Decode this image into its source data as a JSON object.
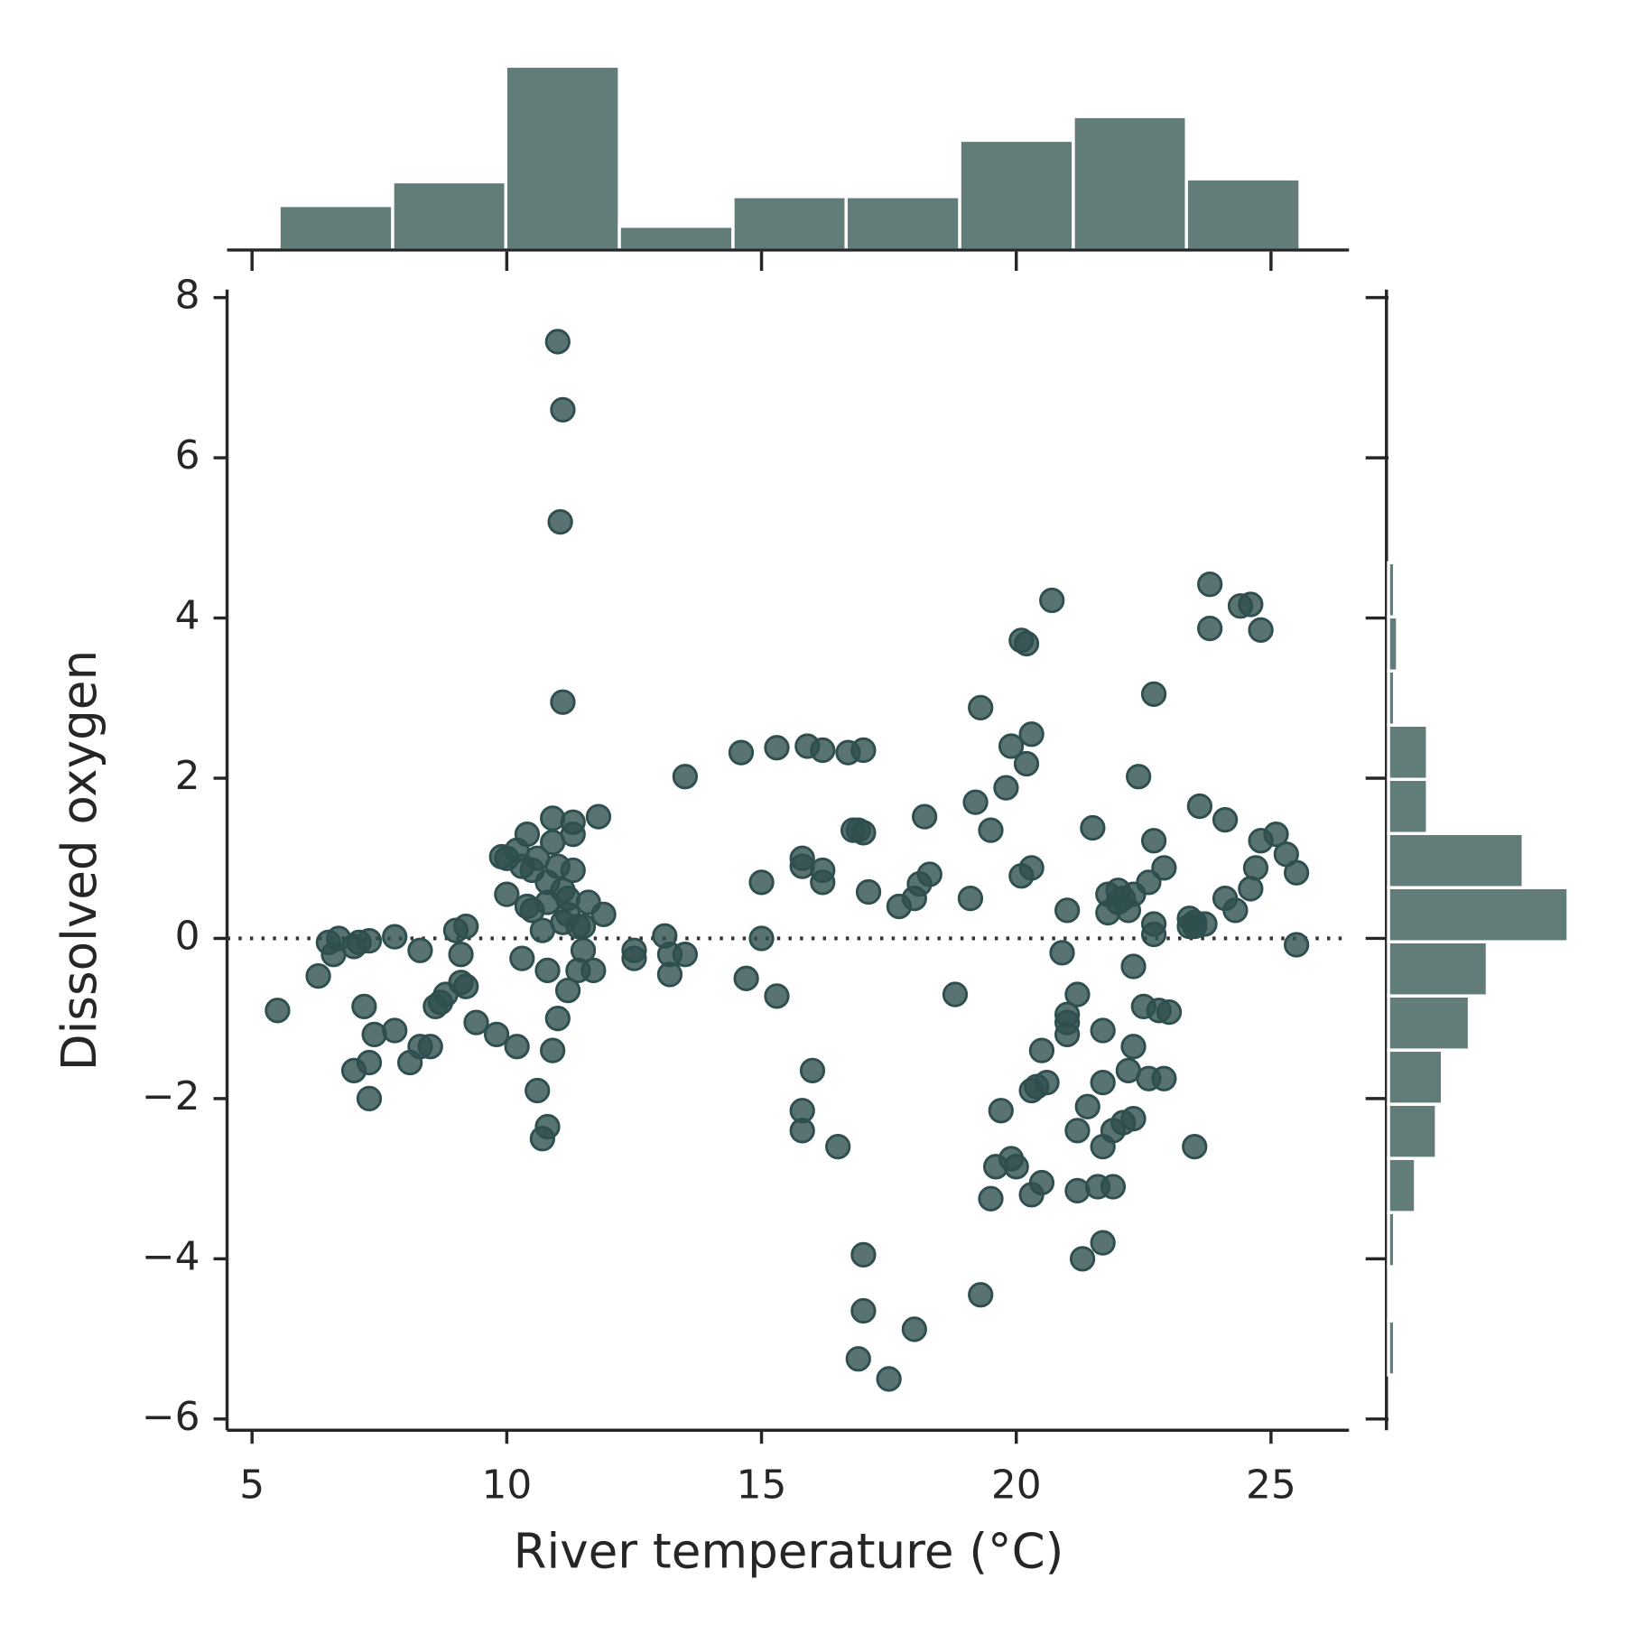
{
  "chart_data": [
    {
      "type": "scatter",
      "xlabel": "River temperature (°C)",
      "ylabel": "Dissolved oxygen",
      "color": "#2f4f4f",
      "xlim": [
        4.51,
        26.53
      ],
      "ylim": [
        -6.14,
        8.1
      ],
      "xticks": [
        5,
        10,
        15,
        20,
        25
      ],
      "yticks": [
        {
          "value": -6,
          "label": "−6"
        },
        {
          "value": -4,
          "label": "−4"
        },
        {
          "value": -2,
          "label": "−2"
        },
        0,
        2,
        4,
        6,
        8
      ],
      "hline": 0,
      "x": [
        5.5,
        6.3,
        6.5,
        6.6,
        6.7,
        7.0,
        7.1,
        7.3,
        7.0,
        7.3,
        7.2,
        7.4,
        7.3,
        7.8,
        7.8,
        8.1,
        8.3,
        8.3,
        8.5,
        8.6,
        8.7,
        8.8,
        9.0,
        9.1,
        9.2,
        9.1,
        9.2,
        9.4,
        9.8,
        9.9,
        10.0,
        10.0,
        10.2,
        10.3,
        10.2,
        10.3,
        10.4,
        10.5,
        10.4,
        10.5,
        10.6,
        10.7,
        10.8,
        10.8,
        10.9,
        10.9,
        10.8,
        10.9,
        10.8,
        10.7,
        11.0,
        11.1,
        11.2,
        11.3,
        11.3,
        11.3,
        11.2,
        11.4,
        11.4,
        11.5,
        11.2,
        11.6,
        11.7,
        11.8,
        11.9,
        11.0,
        11.1,
        11.05,
        11.1,
        11.0,
        11.1,
        10.6,
        11.5,
        12.5,
        12.5,
        13.1,
        13.2,
        13.2,
        13.5,
        13.5,
        14.6,
        14.7,
        15.0,
        15.0,
        15.3,
        15.3,
        15.8,
        15.8,
        15.9,
        15.8,
        15.8,
        16.0,
        16.2,
        16.2,
        16.2,
        16.5,
        16.7,
        16.8,
        16.9,
        17.0,
        17.0,
        17.1,
        17.0,
        17.0,
        16.9,
        17.5,
        17.7,
        18.0,
        18.0,
        18.1,
        18.2,
        18.3,
        18.8,
        19.1,
        19.2,
        19.3,
        19.3,
        19.5,
        19.5,
        19.6,
        19.7,
        19.8,
        19.9,
        19.9,
        20.0,
        20.1,
        20.2,
        20.1,
        20.3,
        20.3,
        20.2,
        20.3,
        20.3,
        20.4,
        20.5,
        20.5,
        20.6,
        20.7,
        20.9,
        21.0,
        21.0,
        21.0,
        21.0,
        21.2,
        21.2,
        21.2,
        21.3,
        21.4,
        21.5,
        21.6,
        21.7,
        21.7,
        21.7,
        21.7,
        21.8,
        21.8,
        21.9,
        21.9,
        22.0,
        22.0,
        22.1,
        22.1,
        22.2,
        22.2,
        22.3,
        22.3,
        22.3,
        22.3,
        22.4,
        22.5,
        22.6,
        22.6,
        22.7,
        22.7,
        22.7,
        22.7,
        22.8,
        22.9,
        22.9,
        23.0,
        23.4,
        23.4,
        23.5,
        23.5,
        23.6,
        23.7,
        23.8,
        23.8,
        24.1,
        24.1,
        24.3,
        24.4,
        24.6,
        24.6,
        24.7,
        24.8,
        24.8,
        25.1,
        25.3,
        25.5,
        25.5,
        23.5
      ],
      "y": [
        -0.9,
        -0.47,
        -0.05,
        -0.2,
        0,
        -0.1,
        -0.05,
        -0.03,
        -1.65,
        -1.55,
        -0.85,
        -1.2,
        -2.0,
        0.02,
        -1.15,
        -1.55,
        -0.15,
        -1.35,
        -1.35,
        -0.85,
        -0.8,
        -0.7,
        0.1,
        -0.2,
        0.15,
        -0.55,
        -0.6,
        -1.05,
        -1.2,
        1.02,
        0.55,
        1.0,
        -1.35,
        -0.25,
        1.1,
        0.9,
        1.3,
        0.85,
        0.4,
        0.35,
        -1.9,
        0.1,
        0.45,
        0.7,
        1.5,
        1.2,
        -0.4,
        -1.4,
        -2.35,
        -2.5,
        -1.0,
        0.2,
        0.5,
        1.3,
        1.45,
        0.85,
        0.3,
        0.15,
        -0.4,
        -0.15,
        -0.65,
        0.45,
        -0.4,
        1.52,
        0.3,
        7.45,
        6.6,
        5.2,
        2.95,
        0.9,
        0.6,
        1.0,
        0.15,
        -0.25,
        -0.15,
        0.03,
        -0.2,
        -0.45,
        -0.2,
        2.02,
        2.32,
        -0.5,
        0.7,
        0.0,
        2.38,
        -0.72,
        1.0,
        0.9,
        2.4,
        -2.15,
        -2.4,
        -1.65,
        2.35,
        0.85,
        0.7,
        -2.6,
        2.32,
        1.35,
        1.35,
        2.35,
        1.32,
        0.58,
        -3.95,
        -4.65,
        -5.25,
        -5.5,
        0.4,
        -4.88,
        0.5,
        0.68,
        1.52,
        0.8,
        -0.7,
        0.5,
        1.7,
        2.88,
        -4.45,
        1.35,
        -3.25,
        -2.85,
        -2.15,
        1.88,
        2.4,
        -2.75,
        -2.85,
        3.72,
        3.68,
        0.78,
        0.88,
        2.55,
        2.18,
        -1.9,
        -3.2,
        -1.85,
        -3.05,
        -1.4,
        -1.8,
        4.22,
        -0.18,
        -0.95,
        -1.05,
        -1.2,
        0.35,
        -0.7,
        -2.4,
        -3.15,
        -4.0,
        -2.1,
        1.38,
        -3.1,
        -3.8,
        -1.15,
        -1.8,
        -2.6,
        0.55,
        0.32,
        -3.1,
        -2.4,
        0.6,
        0.45,
        0.5,
        -2.3,
        0.35,
        -1.65,
        0.55,
        -2.25,
        -1.35,
        -0.35,
        2.02,
        -0.85,
        0.7,
        -1.75,
        3.05,
        1.22,
        0.18,
        0.05,
        -0.9,
        0.88,
        -1.75,
        -0.92,
        0.15,
        0.25,
        0.2,
        -2.6,
        1.65,
        0.18,
        4.42,
        3.87,
        1.48,
        0.5,
        0.35,
        4.15,
        0.62,
        4.17,
        0.88,
        3.85,
        1.22,
        1.3,
        1.05,
        0.82,
        -0.08,
        0.15
      ]
    },
    {
      "type": "histogram",
      "orientation": "vertical",
      "color": "#627c7a",
      "bins": [
        5.53,
        7.76,
        9.98,
        12.21,
        14.44,
        16.66,
        18.89,
        21.12,
        23.34,
        25.57
      ],
      "counts": [
        15,
        23,
        62,
        8,
        18,
        18,
        37,
        45,
        24
      ],
      "xlim": [
        4.51,
        26.53
      ],
      "ylim": [
        0,
        65
      ]
    },
    {
      "type": "histogram",
      "orientation": "horizontal",
      "color": "#627c7a",
      "bins": [
        -5.45,
        -4.774,
        -4.098,
        -3.422,
        -2.746,
        -2.07,
        -1.394,
        -0.718,
        -0.042,
        0.634,
        1.31,
        1.986,
        2.662,
        3.338,
        4.014,
        4.69
      ],
      "counts": [
        2,
        1,
        2,
        9,
        16,
        18,
        27,
        33,
        60,
        45,
        13,
        13,
        2,
        3,
        2
      ],
      "xlim": [
        0,
        63
      ],
      "ylim": [
        -6.14,
        8.1
      ]
    }
  ]
}
